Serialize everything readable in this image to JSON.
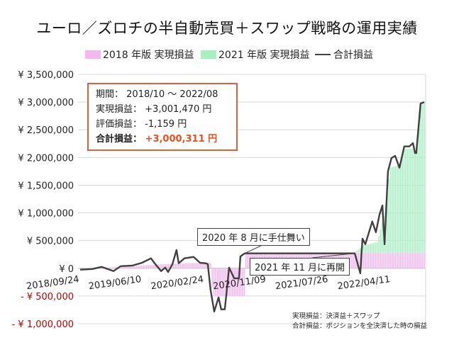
{
  "title": "ユーロ／ズロチの半自動売買＋スワップ戦略の運用実績",
  "stats_box": {
    "period_label": "期間：",
    "period_value": "2018/10 ～ 2022/08",
    "realized_label": "実現損益：",
    "realized_value": "+3,001,470 円",
    "unrealized_label": "評価損益：",
    "unrealized_value": "-1,159 円",
    "total_label": "合計損益：",
    "total_value": "+3,000,311 円"
  },
  "annotations": [
    {
      "text": "2020 年 8 月に手仕舞い",
      "date": "2020-08-12"
    },
    {
      "text": "2021 年 11 月に再開",
      "date": "2021-11-13"
    }
  ],
  "notes": [
    "実現損益：決済益＋スワップ",
    "合計損益：ポジションを全決済した時の損益"
  ],
  "colors": {
    "r2018": "#f4b8ee",
    "r2021": "#a8f0c4",
    "total": "#404040",
    "box": "#e0603a",
    "negative_tick": "#c00000",
    "highlight": "#e8501f"
  },
  "chart_data": {
    "type": "bar+line",
    "legend": [
      "2018 年版 実現損益",
      "2021 年版 実現損益",
      "合計損益"
    ],
    "legend_placement": "top",
    "grid": true,
    "ylim": [
      -1000000,
      3500000
    ],
    "yticks": [
      -1000000,
      -500000,
      0,
      500000,
      1000000,
      1500000,
      2000000,
      2500000,
      3000000,
      3500000
    ],
    "ytick_labels": [
      "- ¥ 1,000,000",
      "- ¥ 500,000",
      "¥ 0",
      "¥ 500,000",
      "¥ 1,000,000",
      "¥ 1,500,000",
      "¥ 2,000,000",
      "¥ 2,500,000",
      "¥ 3,000,000",
      "¥ 3,500,000"
    ],
    "xlim": [
      "2018-09-24",
      "2022-08-29"
    ],
    "xtick_labels": [
      "2018/09/24",
      "2019/06/10",
      "2020/02/24",
      "2020/11/09",
      "2021/07/26",
      "2022/04/11"
    ],
    "series": [
      {
        "name": "2018 年版 実現損益",
        "kind": "bar",
        "steps": [
          [
            "2018-09-24",
            0
          ],
          [
            "2019-03-01",
            20000
          ],
          [
            "2019-06-10",
            50000
          ],
          [
            "2019-10-01",
            80000
          ],
          [
            "2020-01-01",
            95000
          ],
          [
            "2020-03-25",
            95000
          ],
          [
            "2020-04-01",
            -500000
          ],
          [
            "2020-08-10",
            -500000
          ],
          [
            "2020-08-12",
            280000
          ],
          [
            "2022-08-29",
            280000
          ]
        ]
      },
      {
        "name": "2021 年版 実現損益",
        "kind": "bar",
        "steps": [
          [
            "2021-11-13",
            0
          ],
          [
            "2021-12-15",
            130000
          ],
          [
            "2022-02-15",
            190000
          ],
          [
            "2022-03-17",
            730000
          ],
          [
            "2022-04-10",
            1535000
          ],
          [
            "2022-05-18",
            1585000
          ],
          [
            "2022-06-07",
            1880000
          ],
          [
            "2022-07-13",
            1880000
          ],
          [
            "2022-07-27",
            1790000
          ],
          [
            "2022-08-14",
            2685000
          ],
          [
            "2022-08-29",
            2721470
          ]
        ]
      },
      {
        "name": "合計損益",
        "kind": "line",
        "points": [
          [
            "2018-09-27",
            -25000
          ],
          [
            "2018-11-16",
            -13000
          ],
          [
            "2018-12-25",
            25000
          ],
          [
            "2019-02-13",
            -50000
          ],
          [
            "2019-03-14",
            38000
          ],
          [
            "2019-05-03",
            50000
          ],
          [
            "2019-06-11",
            100000
          ],
          [
            "2019-07-19",
            180000
          ],
          [
            "2019-08-03",
            90000
          ],
          [
            "2019-08-30",
            -50000
          ],
          [
            "2019-09-16",
            13000
          ],
          [
            "2019-09-28",
            -65000
          ],
          [
            "2019-10-16",
            75000
          ],
          [
            "2019-11-02",
            330000
          ],
          [
            "2019-11-11",
            90000
          ],
          [
            "2019-12-05",
            180000
          ],
          [
            "2020-01-12",
            205000
          ],
          [
            "2020-02-08",
            100000
          ],
          [
            "2020-03-03",
            90000
          ],
          [
            "2020-03-11",
            75000
          ],
          [
            "2020-03-23",
            -395000
          ],
          [
            "2020-04-07",
            -780000
          ],
          [
            "2020-04-25",
            -525000
          ],
          [
            "2020-05-06",
            -740000
          ],
          [
            "2020-05-21",
            -740000
          ],
          [
            "2020-06-08",
            13000
          ],
          [
            "2020-06-29",
            -180000
          ],
          [
            "2020-07-19",
            -180000
          ],
          [
            "2020-07-25",
            215000
          ],
          [
            "2020-08-12",
            270000
          ],
          [
            "2021-11-13",
            270000
          ],
          [
            "2021-12-06",
            -90000
          ],
          [
            "2021-12-15",
            535000
          ],
          [
            "2021-12-27",
            435000
          ],
          [
            "2022-01-25",
            845000
          ],
          [
            "2022-02-09",
            650000
          ],
          [
            "2022-02-24",
            970000
          ],
          [
            "2022-03-08",
            1135000
          ],
          [
            "2022-03-17",
            435000
          ],
          [
            "2022-03-31",
            1750000
          ],
          [
            "2022-04-15",
            1990000
          ],
          [
            "2022-04-30",
            2030000
          ],
          [
            "2022-05-18",
            1815000
          ],
          [
            "2022-06-07",
            2200000
          ],
          [
            "2022-06-28",
            2200000
          ],
          [
            "2022-07-13",
            2260000
          ],
          [
            "2022-07-22",
            2080000
          ],
          [
            "2022-07-27",
            2080000
          ],
          [
            "2022-08-14",
            2975000
          ],
          [
            "2022-08-29",
            3000311
          ]
        ]
      }
    ]
  }
}
